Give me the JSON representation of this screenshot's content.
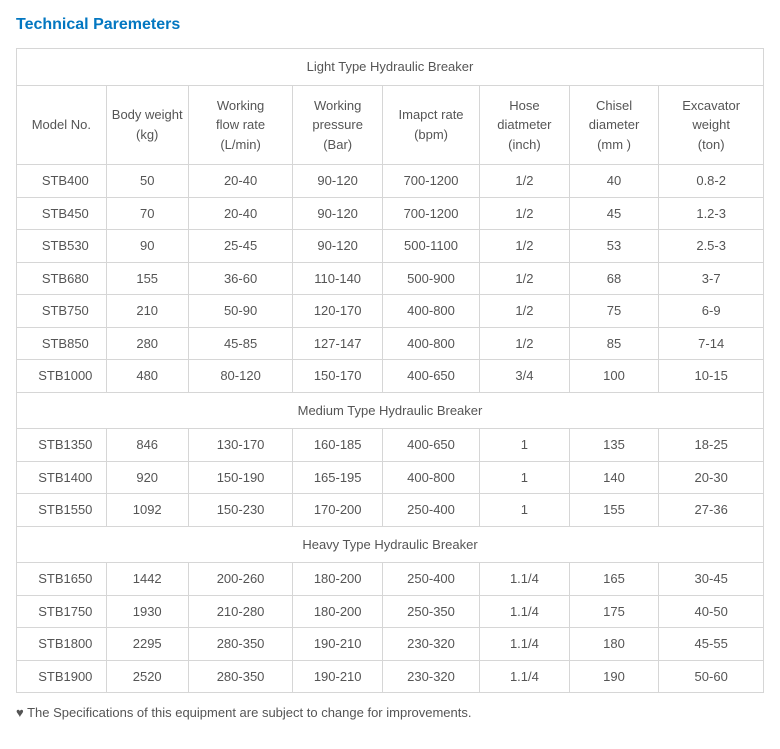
{
  "heading": "Technical Paremeters",
  "footnote": "♥ The Specifications of this equipment are subject to change for improvements.",
  "columns": [
    "Model No.",
    "Body weight (kg)",
    "Working flow rate (L/min)",
    "Working pressure (Bar)",
    "Imapct rate (bpm)",
    "Hose diatmeter (inch)",
    "Chisel diameter (mm )",
    "Excavator weight (ton)"
  ],
  "sections": [
    {
      "title": "Light Type Hydraulic Breaker",
      "rows": [
        [
          "STB400",
          "50",
          "20-40",
          "90-120",
          "700-1200",
          "1/2",
          "40",
          "0.8-2"
        ],
        [
          "STB450",
          "70",
          "20-40",
          "90-120",
          "700-1200",
          "1/2",
          "45",
          "1.2-3"
        ],
        [
          "STB530",
          "90",
          "25-45",
          "90-120",
          "500-1100",
          "1/2",
          "53",
          "2.5-3"
        ],
        [
          "STB680",
          "155",
          "36-60",
          "110-140",
          "500-900",
          "1/2",
          "68",
          "3-7"
        ],
        [
          "STB750",
          "210",
          "50-90",
          "120-170",
          "400-800",
          "1/2",
          "75",
          "6-9"
        ],
        [
          "STB850",
          "280",
          "45-85",
          "127-147",
          "400-800",
          "1/2",
          "85",
          "7-14"
        ],
        [
          "STB1000",
          "480",
          "80-120",
          "150-170",
          "400-650",
          "3/4",
          "100",
          "10-15"
        ]
      ]
    },
    {
      "title": "Medium Type Hydraulic Breaker",
      "rows": [
        [
          "STB1350",
          "846",
          "130-170",
          "160-185",
          "400-650",
          "1",
          "135",
          "18-25"
        ],
        [
          "STB1400",
          "920",
          "150-190",
          "165-195",
          "400-800",
          "1",
          "140",
          "20-30"
        ],
        [
          "STB1550",
          "1092",
          "150-230",
          "170-200",
          "250-400",
          "1",
          "155",
          "27-36"
        ]
      ]
    },
    {
      "title": "Heavy Type Hydraulic Breaker",
      "rows": [
        [
          "STB1650",
          "1442",
          "200-260",
          "180-200",
          "250-400",
          "1.1/4",
          "165",
          "30-45"
        ],
        [
          "STB1750",
          "1930",
          "210-280",
          "180-200",
          "250-350",
          "1.1/4",
          "175",
          "40-50"
        ],
        [
          "STB1800",
          "2295",
          "280-350",
          "190-210",
          "230-320",
          "1.1/4",
          "180",
          "45-55"
        ],
        [
          "STB1900",
          "2520",
          "280-350",
          "190-210",
          "230-320",
          "1.1/4",
          "190",
          "50-60"
        ]
      ]
    }
  ],
  "colors": {
    "heading": "#0377c1",
    "border": "#d6d6d6",
    "text": "#555555",
    "background": "#ffffff"
  },
  "col_widths_pct": [
    12,
    11,
    14,
    12,
    13,
    12,
    12,
    14
  ]
}
